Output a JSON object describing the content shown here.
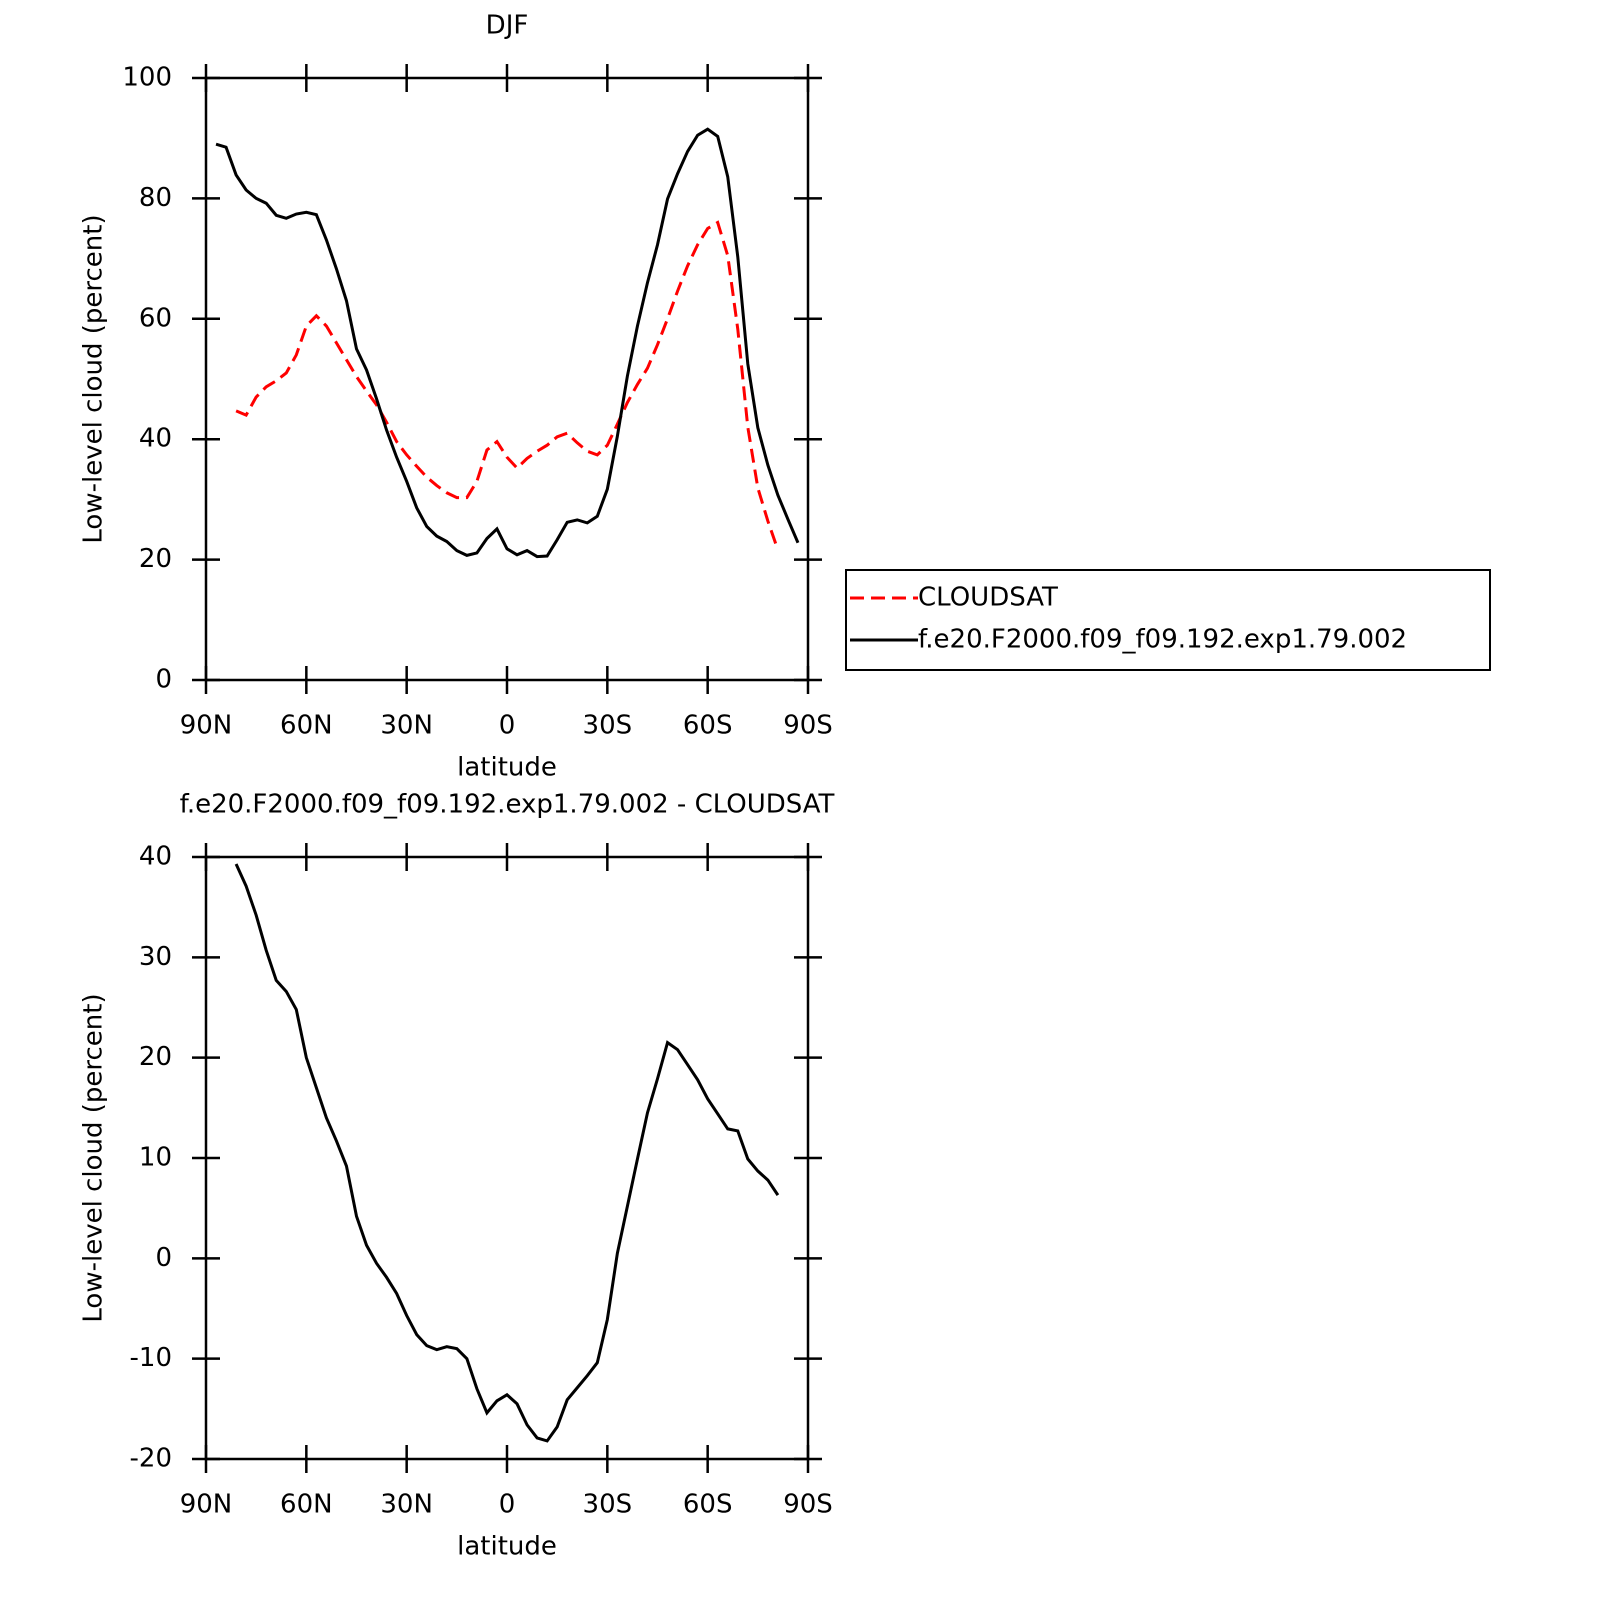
{
  "chart_data": [
    {
      "type": "line",
      "title": "DJF",
      "xlabel": "latitude",
      "ylabel": "Low-level cloud (percent)",
      "x": [
        87,
        84,
        81,
        78,
        75,
        72,
        69,
        66,
        63,
        60,
        57,
        54,
        51,
        48,
        45,
        42,
        39,
        36,
        33,
        30,
        27,
        24,
        21,
        18,
        15,
        12,
        9,
        6,
        3,
        0,
        -3,
        -6,
        -9,
        -12,
        -15,
        -18,
        -21,
        -24,
        -27,
        -30,
        -33,
        -36,
        -39,
        -42,
        -45,
        -48,
        -51,
        -54,
        -57,
        -60,
        -63,
        -66,
        -69,
        -72,
        -75,
        -78,
        -81,
        -84,
        -87
      ],
      "series": [
        {
          "name": "CLOUDSAT",
          "color": "#ff0000",
          "line_style": "dashed",
          "values": [
            null,
            null,
            44.7,
            44,
            47,
            48.7,
            49.7,
            51,
            54,
            58.8,
            60.5,
            58.8,
            56,
            53.2,
            50.4,
            48,
            45.7,
            42.8,
            39.6,
            37.4,
            35.5,
            33.7,
            32.3,
            31.1,
            30.3,
            30.3,
            33,
            38.2,
            39.6,
            37,
            35.2,
            36.8,
            38,
            39,
            40.4,
            41,
            39.4,
            38,
            37.4,
            39,
            42.5,
            46.1,
            49.1,
            51.8,
            55.7,
            60,
            64.6,
            68.8,
            72.3,
            75,
            76,
            70.5,
            58.3,
            42,
            31.9,
            26.4,
            21.6,
            null,
            null
          ]
        },
        {
          "name": "f.e20.F2000.f09_f09.192.exp1.79.002",
          "color": "#000000",
          "line_style": "solid",
          "values": [
            89,
            88.5,
            83.9,
            81.4,
            80,
            79.2,
            77.2,
            76.7,
            77.4,
            77.7,
            77.3,
            73.1,
            68.3,
            63,
            55,
            51.5,
            46.7,
            41.5,
            37,
            33,
            28.6,
            25.5,
            23.9,
            23,
            21.5,
            20.7,
            21.1,
            23.5,
            25.1,
            21.8,
            20.8,
            21.5,
            20.5,
            20.6,
            23.3,
            26.2,
            26.6,
            26.1,
            27.2,
            31.7,
            40.5,
            50.5,
            58.8,
            66,
            72.3,
            79.9,
            84.1,
            87.8,
            90.5,
            91.5,
            90.3,
            83.6,
            70.3,
            52.5,
            41.9,
            35.7,
            30.7,
            26.7,
            22.8
          ]
        }
      ],
      "xlim": [
        90,
        -90
      ],
      "xticks": [
        {
          "value": 90,
          "label": "90N"
        },
        {
          "value": 60,
          "label": "60N"
        },
        {
          "value": 30,
          "label": "30N"
        },
        0,
        {
          "value": -30,
          "label": "30S"
        },
        {
          "value": -60,
          "label": "60S"
        },
        {
          "value": -90,
          "label": "90S"
        }
      ],
      "ylim": [
        0,
        100
      ],
      "yticks": [
        0,
        20,
        40,
        60,
        80,
        100
      ],
      "grid": false,
      "legend": "outside right"
    },
    {
      "type": "line",
      "title": "f.e20.F2000.f09_f09.192.exp1.79.002 - CLOUDSAT",
      "xlabel": "latitude",
      "ylabel": "Low-level cloud (percent)",
      "x": [
        87,
        84,
        81,
        78,
        75,
        72,
        69,
        66,
        63,
        60,
        57,
        54,
        51,
        48,
        45,
        42,
        39,
        36,
        33,
        30,
        27,
        24,
        21,
        18,
        15,
        12,
        9,
        6,
        3,
        0,
        -3,
        -6,
        -9,
        -12,
        -15,
        -18,
        -21,
        -24,
        -27,
        -30,
        -33,
        -36,
        -39,
        -42,
        -45,
        -48,
        -51,
        -54,
        -57,
        -60,
        -63,
        -66,
        -69,
        -72,
        -75,
        -78,
        -81,
        -84,
        -87
      ],
      "series": [
        {
          "color": "#000000",
          "line_style": "solid",
          "values": [
            null,
            null,
            39.3,
            37.1,
            34.2,
            30.7,
            27.7,
            26.6,
            24.8,
            20,
            17,
            14,
            11.7,
            9.2,
            4.2,
            1.3,
            -0.5,
            -1.9,
            -3.5,
            -5.7,
            -7.6,
            -8.7,
            -9.1,
            -8.8,
            -9,
            -10,
            -13,
            -15.4,
            -14.2,
            -13.6,
            -14.5,
            -16.6,
            -17.9,
            -18.2,
            -16.8,
            -14.1,
            -12.9,
            -11.7,
            -10.4,
            -6.1,
            0.5,
            5.2,
            9.9,
            14.5,
            17.9,
            21.5,
            20.8,
            19.3,
            17.8,
            15.9,
            14.4,
            12.9,
            12.7,
            9.9,
            8.7,
            7.8,
            6.3,
            null,
            null
          ]
        }
      ],
      "xlim": [
        90,
        -90
      ],
      "xticks": [
        {
          "value": 90,
          "label": "90N"
        },
        {
          "value": 60,
          "label": "60N"
        },
        {
          "value": 30,
          "label": "30N"
        },
        0,
        {
          "value": -30,
          "label": "30S"
        },
        {
          "value": -60,
          "label": "60S"
        },
        {
          "value": -90,
          "label": "90S"
        }
      ],
      "ylim": [
        -20,
        40
      ],
      "yticks": [
        -20,
        -10,
        0,
        10,
        20,
        30,
        40
      ],
      "grid": false
    }
  ]
}
